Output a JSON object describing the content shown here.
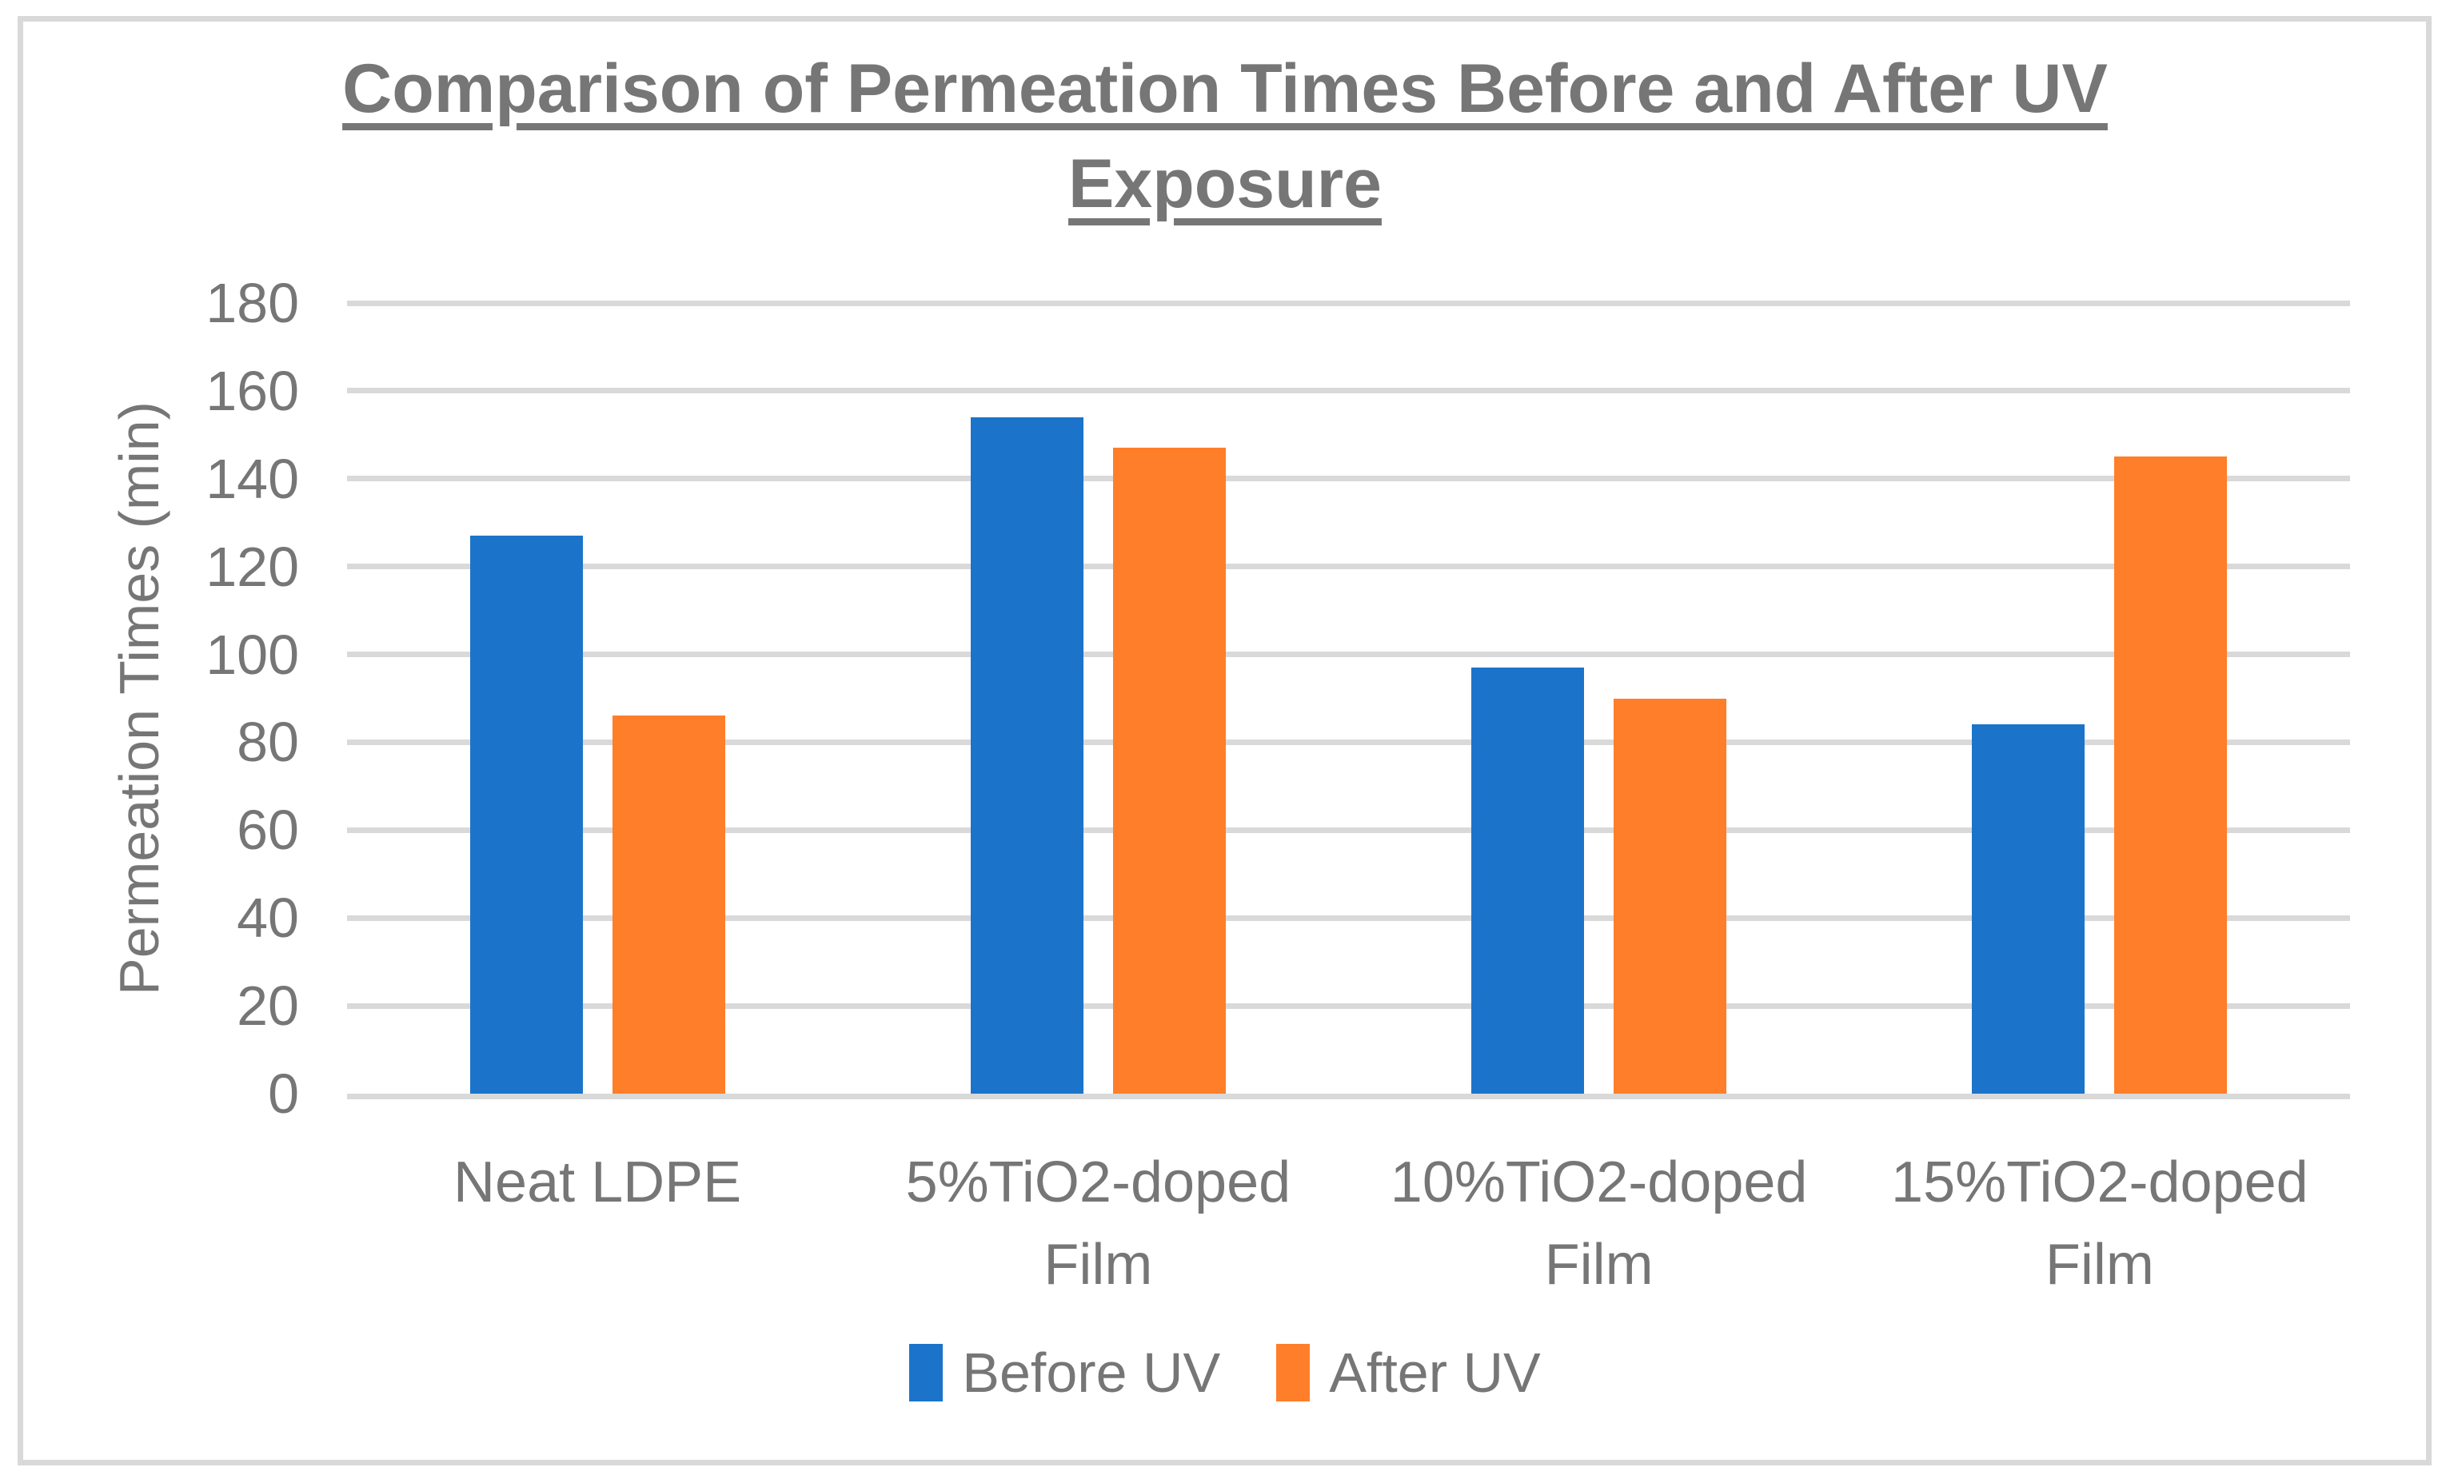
{
  "chart_data": {
    "type": "bar",
    "title": "Comparison of Permeation Times Before and After UV Exposure",
    "categories": [
      "Neat LDPE",
      "5%TiO2-doped Film",
      "10%TiO2-doped Film",
      "15%TiO2-doped Film"
    ],
    "series": [
      {
        "name": "Before UV",
        "color": "#1B74CA",
        "values": [
          127,
          154,
          97,
          84
        ]
      },
      {
        "name": "After UV",
        "color": "#FF7E29",
        "values": [
          86,
          147,
          90,
          145
        ]
      }
    ],
    "xlabel": "",
    "ylabel": "Permeation Times (min)",
    "ylim": [
      0,
      180
    ],
    "yticks": [
      0,
      20,
      40,
      60,
      80,
      100,
      120,
      140,
      160,
      180
    ],
    "grid": "horizontal",
    "gridline_color": "#D9D9D9",
    "text_color": "#767676",
    "legend_position": "bottom"
  }
}
